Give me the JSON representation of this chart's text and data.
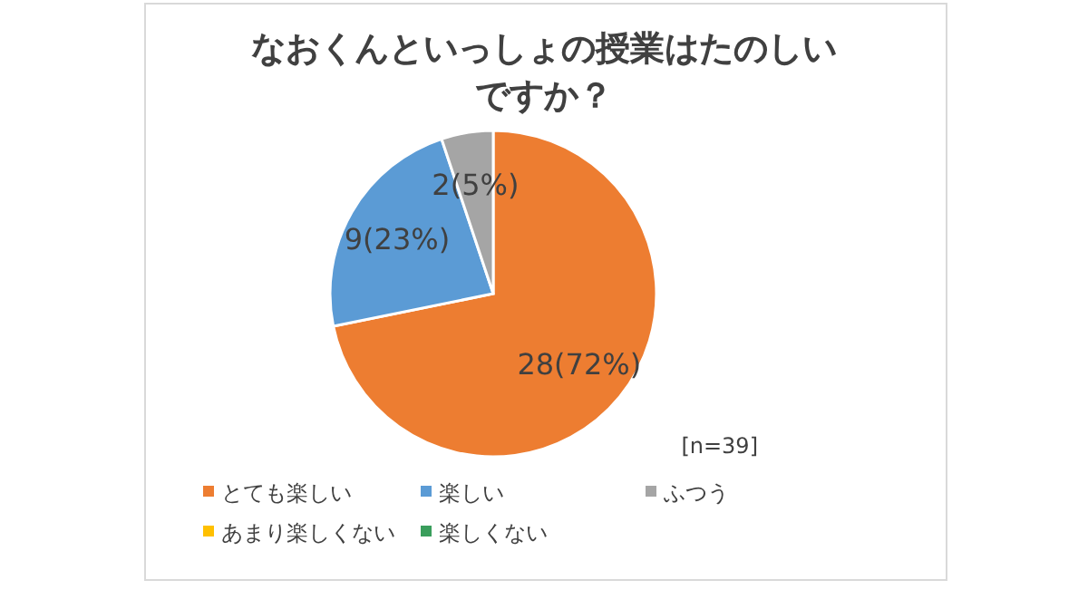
{
  "chart_data": {
    "type": "pie",
    "title": "なおくんといっしょの授業はたのしいですか？",
    "categories": [
      "とても楽しい",
      "楽しい",
      "ふつう",
      "あまり楽しくない",
      "楽しくない"
    ],
    "values": [
      28,
      9,
      2,
      0,
      0
    ],
    "value_labels": [
      "28(72%)",
      "9(23%)",
      "2(5%)",
      null,
      null
    ],
    "colors": [
      "#ed7d31",
      "#5b9bd5",
      "#a5a5a5",
      "#ffc000",
      "#3a9e5c"
    ],
    "annotations": [
      "[n=39]"
    ],
    "legend": "bottom"
  }
}
